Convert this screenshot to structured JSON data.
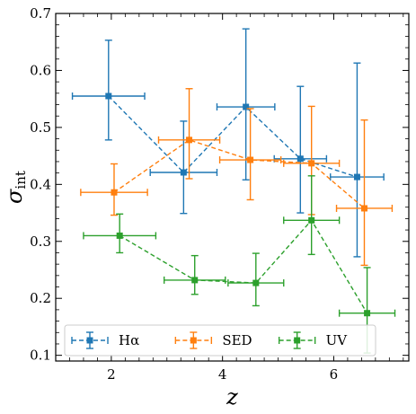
{
  "chart_data": {
    "type": "scatter",
    "xlabel": "z",
    "ylabel": "σ",
    "ylabel_sub": "int",
    "xlim": [
      1.0,
      7.35
    ],
    "ylim": [
      0.09,
      0.7
    ],
    "xticks": [
      2,
      4,
      6
    ],
    "xtick_labels": [
      "2",
      "4",
      "6"
    ],
    "yticks": [
      0.1,
      0.2,
      0.3,
      0.4,
      0.5,
      0.6,
      0.7
    ],
    "ytick_labels": [
      "0.1",
      "0.2",
      "0.3",
      "0.4",
      "0.5",
      "0.6",
      "0.7"
    ],
    "legend_position": "bottom",
    "series": [
      {
        "name": "Hα",
        "color": "#1f77b4",
        "points": [
          {
            "x": 1.95,
            "y": 0.555,
            "xerr": [
              0.65,
              0.65
            ],
            "yerr": [
              0.077,
              0.098
            ]
          },
          {
            "x": 3.3,
            "y": 0.421,
            "xerr": [
              0.6,
              0.6
            ],
            "yerr": [
              0.072,
              0.09
            ]
          },
          {
            "x": 4.42,
            "y": 0.536,
            "xerr": [
              0.52,
              0.52
            ],
            "yerr": [
              0.128,
              0.137
            ]
          },
          {
            "x": 5.4,
            "y": 0.445,
            "xerr": [
              0.47,
              0.47
            ],
            "yerr": [
              0.095,
              0.127
            ]
          },
          {
            "x": 6.42,
            "y": 0.413,
            "xerr": [
              0.48,
              0.48
            ],
            "yerr": [
              0.14,
              0.2
            ]
          }
        ]
      },
      {
        "name": "SED",
        "color": "#ff7f0e",
        "points": [
          {
            "x": 2.05,
            "y": 0.386,
            "xerr": [
              0.6,
              0.6
            ],
            "yerr": [
              0.04,
              0.05
            ]
          },
          {
            "x": 3.4,
            "y": 0.478,
            "xerr": [
              0.55,
              0.55
            ],
            "yerr": [
              0.068,
              0.09
            ]
          },
          {
            "x": 4.5,
            "y": 0.443,
            "xerr": [
              0.55,
              0.55
            ],
            "yerr": [
              0.07,
              0.09
            ]
          },
          {
            "x": 5.6,
            "y": 0.437,
            "xerr": [
              0.5,
              0.5
            ],
            "yerr": [
              0.09,
              0.1
            ]
          },
          {
            "x": 6.55,
            "y": 0.358,
            "xerr": [
              0.5,
              0.5
            ],
            "yerr": [
              0.1,
              0.155
            ]
          }
        ]
      },
      {
        "name": "UV",
        "color": "#2ca02c",
        "points": [
          {
            "x": 2.15,
            "y": 0.31,
            "xerr": [
              0.65,
              0.65
            ],
            "yerr": [
              0.03,
              0.038
            ]
          },
          {
            "x": 3.5,
            "y": 0.232,
            "xerr": [
              0.55,
              0.55
            ],
            "yerr": [
              0.025,
              0.043
            ]
          },
          {
            "x": 4.6,
            "y": 0.227,
            "xerr": [
              0.5,
              0.5
            ],
            "yerr": [
              0.04,
              0.052
            ]
          },
          {
            "x": 5.6,
            "y": 0.337,
            "xerr": [
              0.5,
              0.5
            ],
            "yerr": [
              0.06,
              0.078
            ]
          },
          {
            "x": 6.6,
            "y": 0.174,
            "xerr": [
              0.5,
              0.5
            ],
            "yerr": [
              0.07,
              0.08
            ]
          }
        ]
      }
    ]
  }
}
